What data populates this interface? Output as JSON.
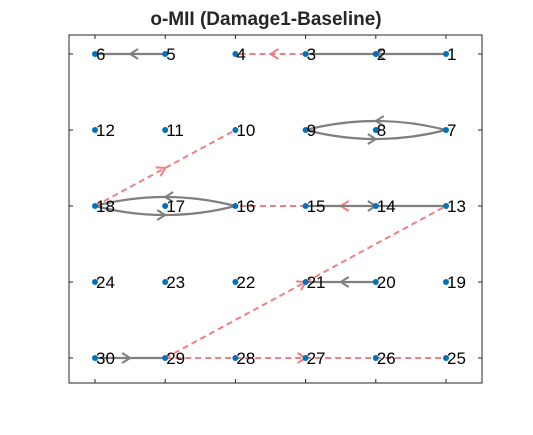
{
  "title": "o-MII (Damage1-Baseline)",
  "colors": {
    "node": "#0072BD",
    "solid_edge": "#7f7f7f",
    "dashed_edge": "#f08080",
    "axes": "#262626"
  },
  "nodes": [
    {
      "id": "1",
      "col": 5,
      "row": 0
    },
    {
      "id": "2",
      "col": 4,
      "row": 0
    },
    {
      "id": "3",
      "col": 3,
      "row": 0
    },
    {
      "id": "4",
      "col": 2,
      "row": 0
    },
    {
      "id": "5",
      "col": 1,
      "row": 0
    },
    {
      "id": "6",
      "col": 0,
      "row": 0
    },
    {
      "id": "7",
      "col": 5,
      "row": 1
    },
    {
      "id": "8",
      "col": 4,
      "row": 1
    },
    {
      "id": "9",
      "col": 3,
      "row": 1
    },
    {
      "id": "10",
      "col": 2,
      "row": 1
    },
    {
      "id": "11",
      "col": 1,
      "row": 1
    },
    {
      "id": "12",
      "col": 0,
      "row": 1
    },
    {
      "id": "13",
      "col": 5,
      "row": 2
    },
    {
      "id": "14",
      "col": 4,
      "row": 2
    },
    {
      "id": "15",
      "col": 3,
      "row": 2
    },
    {
      "id": "16",
      "col": 2,
      "row": 2
    },
    {
      "id": "17",
      "col": 1,
      "row": 2
    },
    {
      "id": "18",
      "col": 0,
      "row": 2
    },
    {
      "id": "19",
      "col": 5,
      "row": 3
    },
    {
      "id": "20",
      "col": 4,
      "row": 3
    },
    {
      "id": "21",
      "col": 3,
      "row": 3
    },
    {
      "id": "22",
      "col": 2,
      "row": 3
    },
    {
      "id": "23",
      "col": 1,
      "row": 3
    },
    {
      "id": "24",
      "col": 0,
      "row": 3
    },
    {
      "id": "25",
      "col": 5,
      "row": 4
    },
    {
      "id": "26",
      "col": 4,
      "row": 4
    },
    {
      "id": "27",
      "col": 3,
      "row": 4
    },
    {
      "id": "28",
      "col": 2,
      "row": 4
    },
    {
      "id": "29",
      "col": 1,
      "row": 4
    },
    {
      "id": "30",
      "col": 0,
      "row": 4
    }
  ],
  "edges": [
    {
      "from": "1",
      "to": "3",
      "style": "solid"
    },
    {
      "from": "5",
      "to": "6",
      "style": "solid"
    },
    {
      "from": "3",
      "to": "4",
      "style": "dashed"
    },
    {
      "from": "7",
      "to": "9",
      "style": "solid",
      "bend": 1
    },
    {
      "from": "9",
      "to": "7",
      "style": "solid",
      "bend": 1
    },
    {
      "from": "16",
      "to": "18",
      "style": "solid",
      "bend": 1
    },
    {
      "from": "18",
      "to": "16",
      "style": "solid",
      "bend": 1
    },
    {
      "from": "18",
      "to": "10",
      "style": "dashed"
    },
    {
      "from": "13",
      "to": "16",
      "style": "dashed"
    },
    {
      "from": "15",
      "to": "13",
      "style": "solid"
    },
    {
      "from": "29",
      "to": "13",
      "style": "dashed"
    },
    {
      "from": "20",
      "to": "21",
      "style": "solid"
    },
    {
      "from": "30",
      "to": "29",
      "style": "solid"
    },
    {
      "from": "29",
      "to": "25",
      "style": "dashed"
    }
  ]
}
